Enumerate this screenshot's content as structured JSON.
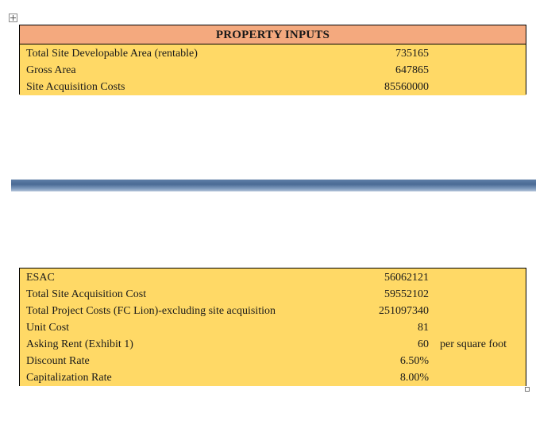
{
  "property_inputs": {
    "title": "PROPERTY INPUTS",
    "rows": [
      {
        "label": "Total Site Developable Area (rentable)",
        "value": "735165"
      },
      {
        "label": "Gross Area",
        "value": "647865"
      },
      {
        "label": "Site Acquisition Costs",
        "value": "85560000"
      }
    ]
  },
  "cost_inputs": {
    "rows": [
      {
        "label": "ESAC",
        "value": "56062121",
        "note": ""
      },
      {
        "label": "Total Site Acquisition Cost",
        "value": "59552102",
        "note": ""
      },
      {
        "label": "Total Project Costs (FC Lion)-excluding site acquisition",
        "value": "251097340",
        "note": ""
      },
      {
        "label": "Unit Cost",
        "value": "81",
        "note": ""
      },
      {
        "label": "Asking Rent (Exhibit 1)",
        "value": "60",
        "note": "per square foot"
      },
      {
        "label": "Discount Rate",
        "value": "6.50%",
        "note": ""
      },
      {
        "label": "Capitalization Rate",
        "value": "8.00%",
        "note": ""
      }
    ]
  },
  "icons": {
    "table_move_handle": "move-icon",
    "table_resize_handle": "resize-handle-icon"
  },
  "colors": {
    "header_fill": "#f4a97e",
    "cell_fill": "#ffd966",
    "divider_fill": "#4a6a94"
  }
}
